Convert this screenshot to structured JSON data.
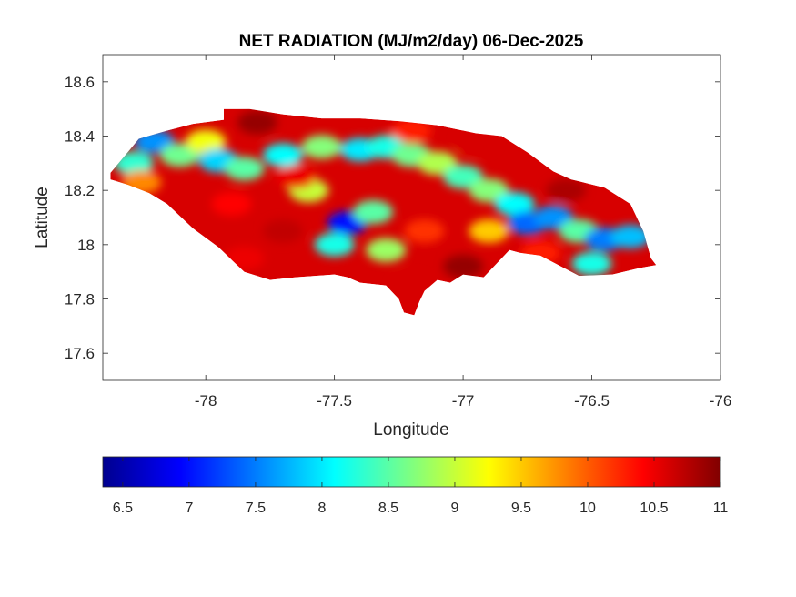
{
  "chart_data": {
    "type": "heatmap",
    "title": "NET RADIATION (MJ/m2/day) 06-Dec-2025",
    "xlabel": "Longitude",
    "ylabel": "Latitude",
    "xlim": [
      -78.4,
      -76
    ],
    "ylim": [
      17.5,
      18.7
    ],
    "x_ticks": [
      -78,
      -77.5,
      -77,
      -76.5,
      -76
    ],
    "y_ticks": [
      17.6,
      17.8,
      18,
      18.2,
      18.4,
      18.6
    ],
    "x_tick_labels": [
      "-78",
      "-77.5",
      "-77",
      "-76.5",
      "-76"
    ],
    "y_tick_labels": [
      "17.6",
      "17.8",
      "18",
      "18.2",
      "18.4",
      "18.6"
    ],
    "colorbar": {
      "orientation": "horizontal",
      "placement": "below",
      "colormap": "jet",
      "range": [
        6.35,
        11
      ],
      "ticks": [
        6.5,
        7,
        7.5,
        8,
        8.5,
        9,
        9.5,
        10,
        10.5,
        11
      ],
      "tick_labels": [
        "6.5",
        "7",
        "7.5",
        "8",
        "8.5",
        "9",
        "9.5",
        "10",
        "10.5",
        "11"
      ]
    },
    "grid": false,
    "region_outline": [
      [
        -78.37,
        18.265
      ],
      [
        -78.33,
        18.31
      ],
      [
        -78.26,
        18.39
      ],
      [
        -78.15,
        18.42
      ],
      [
        -78.05,
        18.445
      ],
      [
        -77.93,
        18.46
      ],
      [
        -77.93,
        18.5
      ],
      [
        -77.83,
        18.5
      ],
      [
        -77.7,
        18.48
      ],
      [
        -77.55,
        18.465
      ],
      [
        -77.4,
        18.465
      ],
      [
        -77.25,
        18.455
      ],
      [
        -77.1,
        18.44
      ],
      [
        -76.95,
        18.41
      ],
      [
        -76.85,
        18.4
      ],
      [
        -76.75,
        18.34
      ],
      [
        -76.65,
        18.27
      ],
      [
        -76.58,
        18.24
      ],
      [
        -76.45,
        18.21
      ],
      [
        -76.35,
        18.15
      ],
      [
        -76.3,
        18.05
      ],
      [
        -76.27,
        17.95
      ],
      [
        -76.25,
        17.925
      ],
      [
        -76.31,
        17.915
      ],
      [
        -76.42,
        17.89
      ],
      [
        -76.55,
        17.885
      ],
      [
        -76.62,
        17.92
      ],
      [
        -76.7,
        17.96
      ],
      [
        -76.78,
        17.97
      ],
      [
        -76.82,
        17.98
      ],
      [
        -76.85,
        17.95
      ],
      [
        -76.92,
        17.88
      ],
      [
        -77.0,
        17.89
      ],
      [
        -77.05,
        17.86
      ],
      [
        -77.1,
        17.87
      ],
      [
        -77.15,
        17.83
      ],
      [
        -77.17,
        17.79
      ],
      [
        -77.19,
        17.74
      ],
      [
        -77.23,
        17.75
      ],
      [
        -77.25,
        17.8
      ],
      [
        -77.3,
        17.85
      ],
      [
        -77.4,
        17.86
      ],
      [
        -77.45,
        17.88
      ],
      [
        -77.5,
        17.89
      ],
      [
        -77.65,
        17.88
      ],
      [
        -77.75,
        17.87
      ],
      [
        -77.85,
        17.9
      ],
      [
        -77.95,
        17.99
      ],
      [
        -78.05,
        18.06
      ],
      [
        -78.15,
        18.15
      ],
      [
        -78.22,
        18.19
      ],
      [
        -78.3,
        18.22
      ],
      [
        -78.37,
        18.24
      ]
    ],
    "field_samples": [
      {
        "lon": -78.28,
        "lat": 18.3,
        "value": 8.3
      },
      {
        "lon": -78.2,
        "lat": 18.38,
        "value": 7.6
      },
      {
        "lon": -78.1,
        "lat": 18.33,
        "value": 8.6
      },
      {
        "lon": -78.0,
        "lat": 18.38,
        "value": 9.2
      },
      {
        "lon": -77.95,
        "lat": 18.31,
        "value": 7.9
      },
      {
        "lon": -77.85,
        "lat": 18.28,
        "value": 8.5
      },
      {
        "lon": -77.7,
        "lat": 18.33,
        "value": 8.1
      },
      {
        "lon": -77.55,
        "lat": 18.36,
        "value": 8.7
      },
      {
        "lon": -77.4,
        "lat": 18.35,
        "value": 8.0
      },
      {
        "lon": -77.3,
        "lat": 18.36,
        "value": 8.2
      },
      {
        "lon": -77.2,
        "lat": 18.33,
        "value": 8.6
      },
      {
        "lon": -77.1,
        "lat": 18.3,
        "value": 8.9
      },
      {
        "lon": -77.0,
        "lat": 18.25,
        "value": 8.4
      },
      {
        "lon": -76.9,
        "lat": 18.2,
        "value": 8.7
      },
      {
        "lon": -76.8,
        "lat": 18.15,
        "value": 8.1
      },
      {
        "lon": -76.75,
        "lat": 18.08,
        "value": 7.4
      },
      {
        "lon": -76.65,
        "lat": 18.1,
        "value": 7.6
      },
      {
        "lon": -76.55,
        "lat": 18.05,
        "value": 8.5
      },
      {
        "lon": -76.45,
        "lat": 18.02,
        "value": 7.5
      },
      {
        "lon": -76.35,
        "lat": 18.03,
        "value": 7.8
      },
      {
        "lon": -76.5,
        "lat": 17.93,
        "value": 8.2
      },
      {
        "lon": -77.45,
        "lat": 18.08,
        "value": 7.0
      },
      {
        "lon": -77.5,
        "lat": 18.0,
        "value": 8.2
      },
      {
        "lon": -77.3,
        "lat": 17.98,
        "value": 8.8
      },
      {
        "lon": -77.35,
        "lat": 18.12,
        "value": 8.5
      },
      {
        "lon": -77.6,
        "lat": 18.2,
        "value": 9.0
      },
      {
        "lon": -77.9,
        "lat": 18.15,
        "value": 10.4
      },
      {
        "lon": -77.8,
        "lat": 18.45,
        "value": 10.9
      },
      {
        "lon": -77.7,
        "lat": 18.05,
        "value": 10.7
      },
      {
        "lon": -77.85,
        "lat": 17.95,
        "value": 10.5
      },
      {
        "lon": -77.15,
        "lat": 18.05,
        "value": 10.2
      },
      {
        "lon": -77.0,
        "lat": 17.92,
        "value": 10.9
      },
      {
        "lon": -77.2,
        "lat": 17.85,
        "value": 10.6
      },
      {
        "lon": -76.6,
        "lat": 18.2,
        "value": 10.8
      },
      {
        "lon": -76.95,
        "lat": 18.38,
        "value": 10.6
      },
      {
        "lon": -77.2,
        "lat": 18.42,
        "value": 10.3
      },
      {
        "lon": -76.7,
        "lat": 17.97,
        "value": 10.3
      },
      {
        "lon": -76.9,
        "lat": 18.05,
        "value": 9.5
      },
      {
        "lon": -77.65,
        "lat": 18.25,
        "value": 10.5
      },
      {
        "lon": -78.25,
        "lat": 18.23,
        "value": 9.8
      }
    ]
  }
}
